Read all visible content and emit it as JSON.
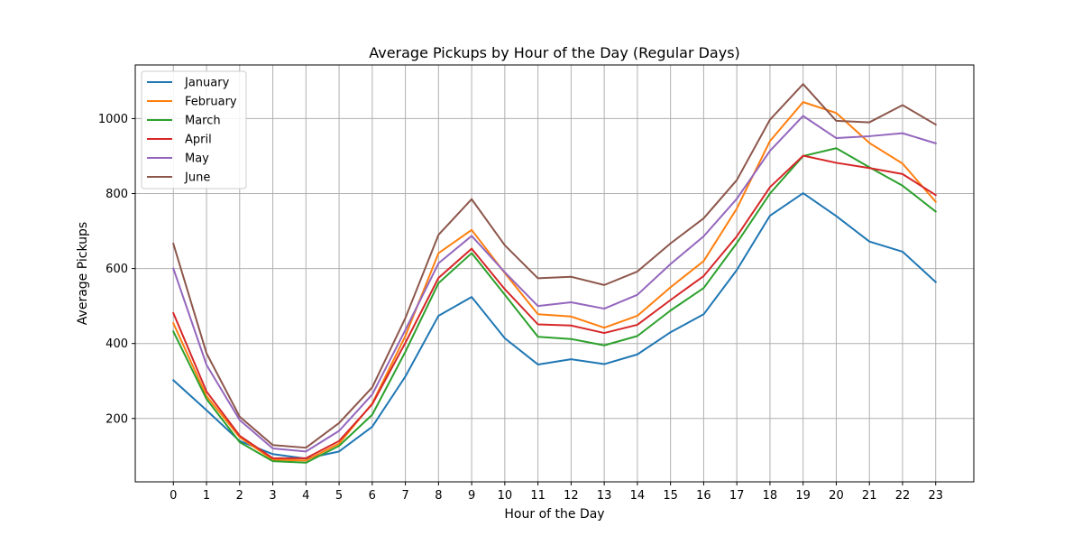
{
  "chart_data": {
    "type": "line",
    "title": "Average Pickups by Hour of the Day (Regular Days)",
    "xlabel": "Hour of the Day",
    "ylabel": "Average Pickups",
    "x": [
      0,
      1,
      2,
      3,
      4,
      5,
      6,
      7,
      8,
      9,
      10,
      11,
      12,
      13,
      14,
      15,
      16,
      17,
      18,
      19,
      20,
      21,
      22,
      23
    ],
    "x_tick_labels": [
      "0",
      "1",
      "2",
      "3",
      "4",
      "5",
      "6",
      "7",
      "8",
      "9",
      "10",
      "11",
      "12",
      "13",
      "14",
      "15",
      "16",
      "17",
      "18",
      "19",
      "20",
      "21",
      "22",
      "23"
    ],
    "y_ticks": [
      200,
      400,
      600,
      800,
      1000
    ],
    "y_tick_labels": [
      "200",
      "400",
      "600",
      "800",
      "1000"
    ],
    "xlim": [
      -1.15,
      24.15
    ],
    "ylim": [
      31,
      1143
    ],
    "grid": true,
    "legend_position": "upper-left",
    "series": [
      {
        "name": "January",
        "color": "#1f77b4",
        "values": [
          302,
          222,
          140,
          105,
          93,
          112,
          178,
          312,
          474,
          524,
          414,
          344,
          358,
          345,
          371,
          430,
          478,
          596,
          741,
          801,
          740,
          672,
          645,
          564
        ]
      },
      {
        "name": "February",
        "color": "#ff7f0e",
        "values": [
          454,
          260,
          150,
          90,
          88,
          133,
          240,
          420,
          641,
          703,
          588,
          478,
          472,
          442,
          474,
          550,
          620,
          760,
          940,
          1044,
          1015,
          935,
          880,
          778
        ]
      },
      {
        "name": "March",
        "color": "#2ca02c",
        "values": [
          432,
          252,
          137,
          86,
          82,
          127,
          210,
          378,
          561,
          641,
          530,
          418,
          412,
          395,
          420,
          488,
          548,
          668,
          800,
          900,
          921,
          870,
          821,
          752
        ]
      },
      {
        "name": "April",
        "color": "#d62728",
        "values": [
          481,
          272,
          154,
          94,
          94,
          140,
          238,
          402,
          575,
          653,
          545,
          451,
          448,
          428,
          450,
          516,
          580,
          686,
          817,
          901,
          882,
          868,
          852,
          796
        ]
      },
      {
        "name": "May",
        "color": "#9467bd",
        "values": [
          600,
          343,
          196,
          120,
          112,
          167,
          264,
          436,
          614,
          687,
          590,
          500,
          510,
          493,
          530,
          612,
          686,
          786,
          914,
          1007,
          948,
          953,
          961,
          934
        ]
      },
      {
        "name": "June",
        "color": "#8c564b",
        "values": [
          666,
          374,
          205,
          129,
          122,
          188,
          283,
          468,
          690,
          785,
          662,
          574,
          578,
          556,
          592,
          667,
          734,
          836,
          997,
          1092,
          994,
          990,
          1036,
          984
        ]
      }
    ]
  }
}
